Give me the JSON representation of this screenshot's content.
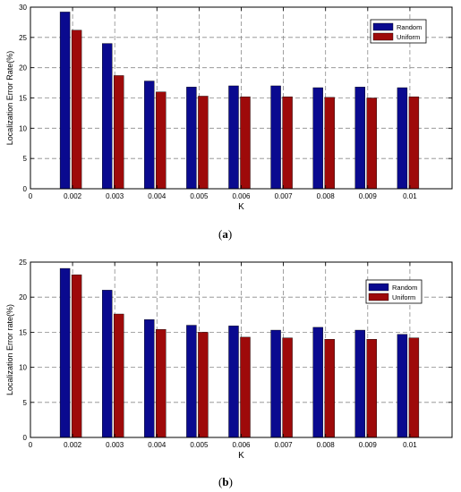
{
  "charts": [
    {
      "type": "bar",
      "ylabel": "Localization Error Rate(%)",
      "xlabel": "K",
      "x_origin_label": "0",
      "categories": [
        "0.002",
        "0.003",
        "0.004",
        "0.005",
        "0.006",
        "0.007",
        "0.008",
        "0.009",
        "0.01"
      ],
      "series": [
        {
          "name": "Random",
          "color": "#0a0a8f",
          "values": [
            29.2,
            24.0,
            17.8,
            16.8,
            17.0,
            17.0,
            16.7,
            16.8,
            16.7
          ]
        },
        {
          "name": "Uniform",
          "color": "#9e0a0a",
          "values": [
            26.2,
            18.7,
            16.0,
            15.3,
            15.2,
            15.2,
            15.1,
            15.0,
            15.2
          ]
        }
      ],
      "ylim": [
        0,
        30
      ],
      "yticks": [
        0,
        5,
        10,
        15,
        20,
        25,
        30
      ],
      "grid": true,
      "legend": "top-right",
      "caption_open": "(",
      "caption_letter": "a",
      "caption_close": ")"
    },
    {
      "type": "bar",
      "ylabel": "Localization Error rate(%)",
      "xlabel": "K",
      "x_origin_label": "0",
      "categories": [
        "0.002",
        "0.003",
        "0.004",
        "0.005",
        "0.006",
        "0.007",
        "0.008",
        "0.009",
        "0.01"
      ],
      "series": [
        {
          "name": "Random",
          "color": "#0a0a8f",
          "values": [
            24.1,
            21.0,
            16.8,
            16.0,
            15.9,
            15.3,
            15.7,
            15.3,
            14.7
          ]
        },
        {
          "name": "Uniform",
          "color": "#9e0a0a",
          "values": [
            23.2,
            17.6,
            15.4,
            15.0,
            14.3,
            14.2,
            14.0,
            14.0,
            14.2
          ]
        }
      ],
      "ylim": [
        0,
        25
      ],
      "yticks": [
        0,
        5,
        10,
        15,
        20,
        25
      ],
      "grid": true,
      "legend": "top-right",
      "caption_open": "(",
      "caption_letter": "b",
      "caption_close": ")"
    }
  ]
}
